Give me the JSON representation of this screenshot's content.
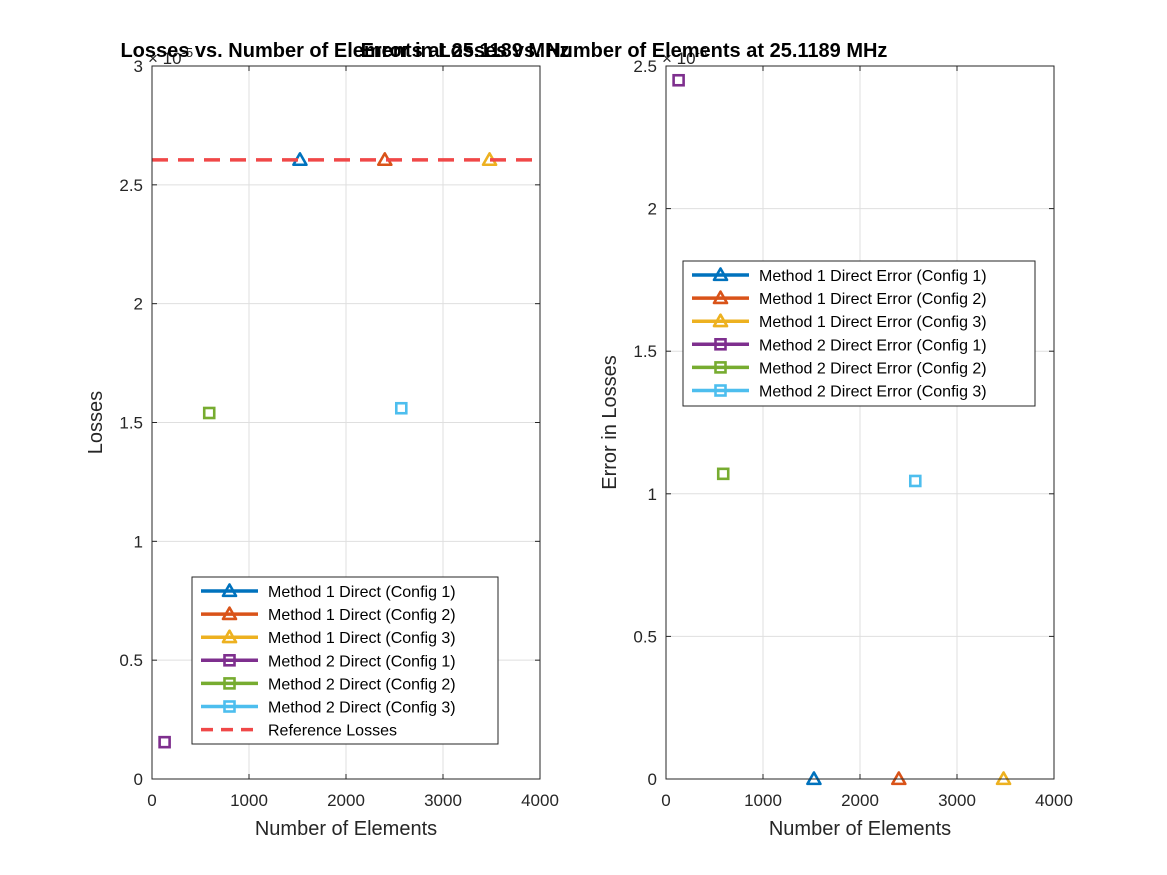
{
  "chart_data": [
    {
      "type": "scatter",
      "title": "Losses vs. Number of Elements at 25.1189 MHz",
      "xlabel": "Number of Elements",
      "ylabel": "Losses",
      "y_exponent_label": "× 10",
      "y_exponent_power": "-5",
      "xlim": [
        0,
        4000
      ],
      "ylim": [
        0,
        3
      ],
      "xticks": [
        0,
        1000,
        2000,
        3000,
        4000
      ],
      "yticks": [
        0,
        0.5,
        1,
        1.5,
        2,
        2.5,
        3
      ],
      "xtick_labels": [
        "0",
        "1000",
        "2000",
        "3000",
        "4000"
      ],
      "ytick_labels": [
        "0",
        "0.5",
        "1",
        "1.5",
        "2",
        "2.5",
        "3"
      ],
      "grid": true,
      "legend_location": "bottom-center",
      "series": [
        {
          "name": "Method 1 Direct (Config 1)",
          "marker": "triangle",
          "color": "#0072BD",
          "x": [
            1525
          ],
          "y": [
            2.605
          ]
        },
        {
          "name": "Method 1 Direct (Config 2)",
          "marker": "triangle",
          "color": "#D95319",
          "x": [
            2400
          ],
          "y": [
            2.605
          ]
        },
        {
          "name": "Method 1 Direct (Config 3)",
          "marker": "triangle",
          "color": "#EDB120",
          "x": [
            3480
          ],
          "y": [
            2.605
          ]
        },
        {
          "name": "Method 2 Direct (Config 1)",
          "marker": "square",
          "color": "#7E2F8E",
          "x": [
            130
          ],
          "y": [
            0.155
          ]
        },
        {
          "name": "Method 2 Direct (Config 2)",
          "marker": "square",
          "color": "#77AC30",
          "x": [
            590
          ],
          "y": [
            1.54
          ]
        },
        {
          "name": "Method 2 Direct (Config 3)",
          "marker": "square",
          "color": "#4DBEEE",
          "x": [
            2570
          ],
          "y": [
            1.56
          ]
        },
        {
          "name": "Reference Losses",
          "marker": "dashed-line",
          "color": "#F04848",
          "y_const": 2.605
        }
      ]
    },
    {
      "type": "scatter",
      "title": "Error in Losses vs. Number of Elements at 25.1189 MHz",
      "xlabel": "Number of Elements",
      "ylabel": "Error in Losses",
      "y_exponent_label": "× 10",
      "y_exponent_power": "-5",
      "xlim": [
        0,
        4000
      ],
      "ylim": [
        0,
        2.5
      ],
      "xticks": [
        0,
        1000,
        2000,
        3000,
        4000
      ],
      "yticks": [
        0,
        0.5,
        1,
        1.5,
        2,
        2.5
      ],
      "xtick_labels": [
        "0",
        "1000",
        "2000",
        "3000",
        "4000"
      ],
      "ytick_labels": [
        "0",
        "0.5",
        "1",
        "1.5",
        "2",
        "2.5"
      ],
      "grid": true,
      "legend_location": "middle-center",
      "series": [
        {
          "name": "Method 1 Direct Error (Config 1)",
          "marker": "triangle",
          "color": "#0072BD",
          "x": [
            1525
          ],
          "y": [
            0.0
          ]
        },
        {
          "name": "Method 1 Direct Error (Config 2)",
          "marker": "triangle",
          "color": "#D95319",
          "x": [
            2400
          ],
          "y": [
            0.0
          ]
        },
        {
          "name": "Method 1 Direct Error (Config 3)",
          "marker": "triangle",
          "color": "#EDB120",
          "x": [
            3480
          ],
          "y": [
            0.0
          ]
        },
        {
          "name": "Method 2 Direct Error (Config 1)",
          "marker": "square",
          "color": "#7E2F8E",
          "x": [
            130
          ],
          "y": [
            2.45
          ]
        },
        {
          "name": "Method 2 Direct Error (Config 2)",
          "marker": "square",
          "color": "#77AC30",
          "x": [
            590
          ],
          "y": [
            1.07
          ]
        },
        {
          "name": "Method 2 Direct Error (Config 3)",
          "marker": "square",
          "color": "#4DBEEE",
          "x": [
            2570
          ],
          "y": [
            1.045
          ]
        }
      ]
    }
  ]
}
